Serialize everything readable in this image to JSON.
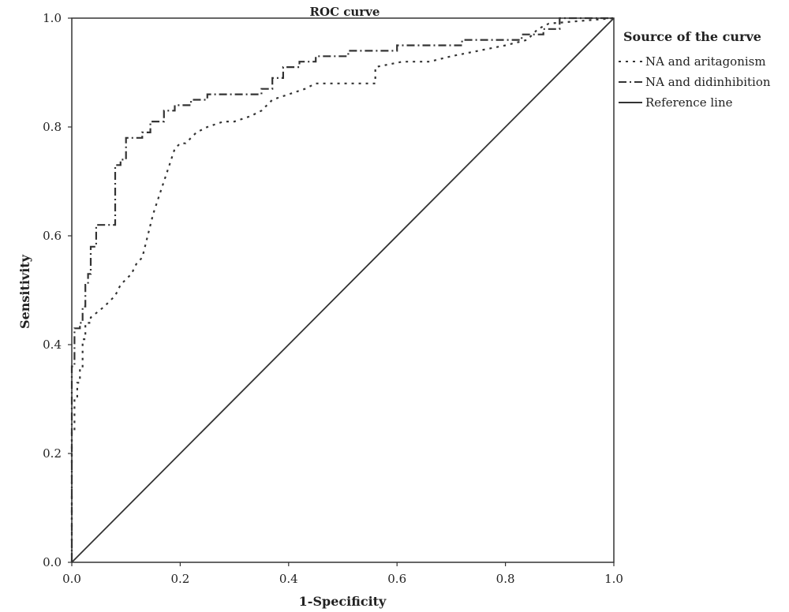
{
  "chart_data": {
    "type": "line",
    "title": "ROC curve",
    "xlabel": "1-Specificity",
    "ylabel": "Sensitivity",
    "xlim": [
      0,
      1
    ],
    "ylim": [
      0,
      1
    ],
    "x_ticks": [
      "0.0",
      "0.2",
      "0.4",
      "0.6",
      "0.8",
      "1.0"
    ],
    "y_ticks": [
      "0.0",
      "0.2",
      "0.4",
      "0.6",
      "0.8",
      "1.0"
    ],
    "grid": false,
    "legend": {
      "title": "Source of the curve",
      "position": "right"
    },
    "series": [
      {
        "name": "NA and aritagonism",
        "style": "dotted",
        "x": [
          0.0,
          0.0,
          0.005,
          0.005,
          0.01,
          0.01,
          0.015,
          0.015,
          0.02,
          0.02,
          0.025,
          0.025,
          0.035,
          0.035,
          0.06,
          0.07,
          0.08,
          0.09,
          0.1,
          0.11,
          0.12,
          0.13,
          0.14,
          0.15,
          0.16,
          0.17,
          0.18,
          0.19,
          0.2,
          0.21,
          0.22,
          0.23,
          0.25,
          0.28,
          0.3,
          0.33,
          0.35,
          0.37,
          0.4,
          0.43,
          0.45,
          0.56,
          0.56,
          0.61,
          0.66,
          0.7,
          0.8,
          0.84,
          0.85,
          0.86,
          0.88,
          1.0
        ],
        "y": [
          0.0,
          0.24,
          0.24,
          0.3,
          0.3,
          0.33,
          0.33,
          0.36,
          0.36,
          0.41,
          0.41,
          0.44,
          0.44,
          0.45,
          0.47,
          0.48,
          0.49,
          0.51,
          0.52,
          0.53,
          0.55,
          0.56,
          0.6,
          0.64,
          0.67,
          0.7,
          0.73,
          0.76,
          0.77,
          0.77,
          0.78,
          0.79,
          0.8,
          0.81,
          0.81,
          0.82,
          0.83,
          0.85,
          0.86,
          0.87,
          0.88,
          0.88,
          0.91,
          0.92,
          0.92,
          0.93,
          0.95,
          0.96,
          0.97,
          0.98,
          0.99,
          1.0
        ]
      },
      {
        "name": "NA and didinhibition",
        "style": "dashdot",
        "x": [
          0.0,
          0.0,
          0.005,
          0.005,
          0.015,
          0.015,
          0.02,
          0.02,
          0.025,
          0.025,
          0.03,
          0.03,
          0.035,
          0.035,
          0.045,
          0.045,
          0.08,
          0.08,
          0.09,
          0.09,
          0.1,
          0.1,
          0.13,
          0.13,
          0.145,
          0.145,
          0.17,
          0.17,
          0.19,
          0.19,
          0.22,
          0.22,
          0.25,
          0.25,
          0.35,
          0.35,
          0.37,
          0.37,
          0.39,
          0.39,
          0.42,
          0.42,
          0.45,
          0.45,
          0.51,
          0.51,
          0.6,
          0.6,
          0.72,
          0.72,
          0.83,
          0.83,
          0.87,
          0.87,
          0.9,
          0.9,
          1.0
        ],
        "y": [
          0.0,
          0.36,
          0.36,
          0.43,
          0.43,
          0.44,
          0.44,
          0.47,
          0.47,
          0.51,
          0.51,
          0.53,
          0.53,
          0.58,
          0.58,
          0.62,
          0.62,
          0.73,
          0.73,
          0.74,
          0.74,
          0.78,
          0.78,
          0.79,
          0.79,
          0.81,
          0.81,
          0.83,
          0.83,
          0.84,
          0.84,
          0.85,
          0.85,
          0.86,
          0.86,
          0.87,
          0.87,
          0.89,
          0.89,
          0.91,
          0.91,
          0.92,
          0.92,
          0.93,
          0.93,
          0.94,
          0.94,
          0.95,
          0.95,
          0.96,
          0.96,
          0.97,
          0.97,
          0.98,
          0.98,
          1.0,
          1.0
        ]
      },
      {
        "name": "Reference line",
        "style": "solid",
        "x": [
          0,
          1
        ],
        "y": [
          0,
          1
        ]
      }
    ]
  }
}
